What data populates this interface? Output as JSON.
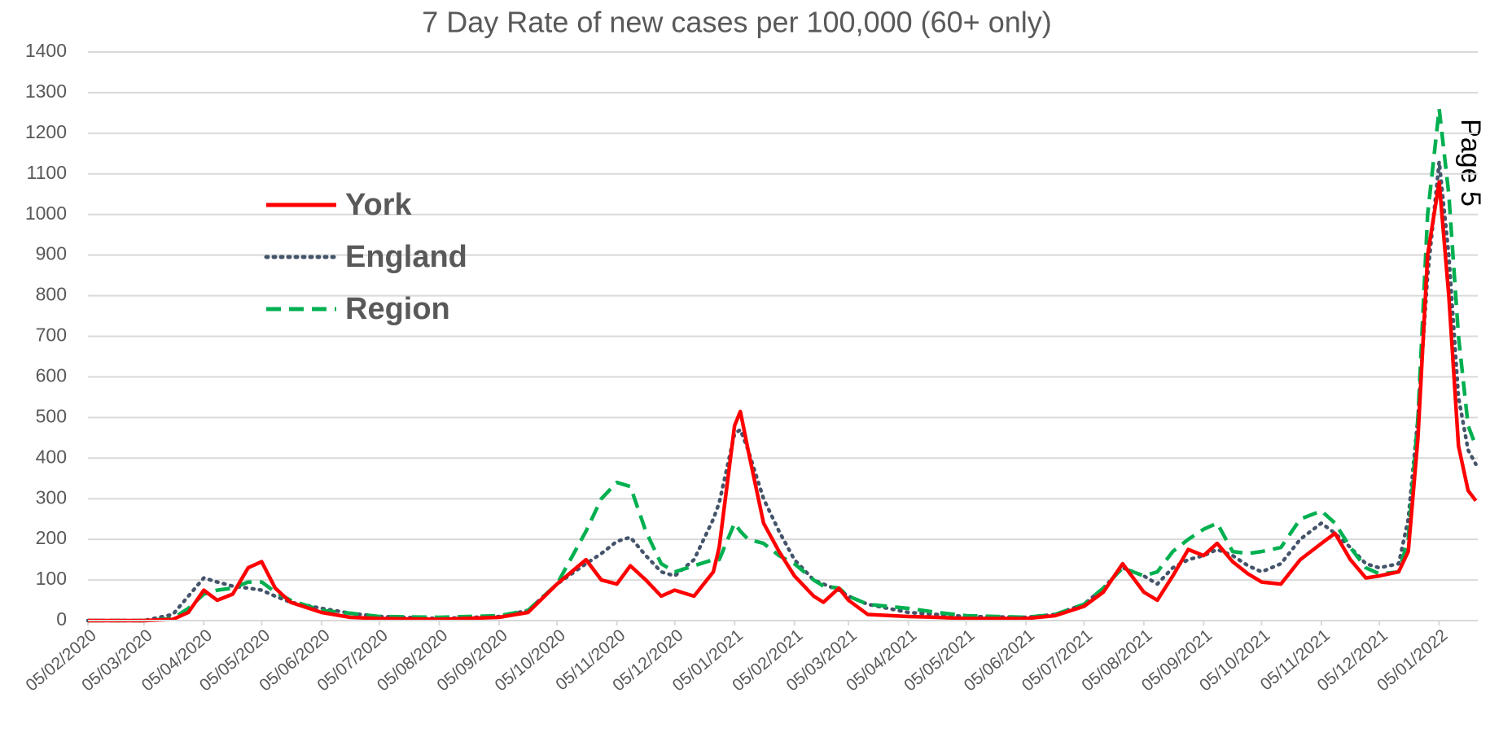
{
  "chart_data": {
    "type": "line",
    "title": "7 Day Rate of new cases per 100,000 (60+ only)",
    "annotation": "Page 5",
    "x": [
      "05/02/2020",
      "05/03/2020",
      "20/03/2020",
      "28/03/2020",
      "05/04/2020",
      "12/04/2020",
      "20/04/2020",
      "28/04/2020",
      "05/05/2020",
      "12/05/2020",
      "20/05/2020",
      "05/06/2020",
      "20/06/2020",
      "05/07/2020",
      "05/08/2020",
      "05/09/2020",
      "20/09/2020",
      "05/10/2020",
      "20/10/2020",
      "28/10/2020",
      "05/11/2020",
      "12/11/2020",
      "20/11/2020",
      "28/11/2020",
      "05/12/2020",
      "15/12/2020",
      "25/12/2020",
      "28/12/2020",
      "05/01/2021",
      "08/01/2021",
      "12/01/2021",
      "20/01/2021",
      "28/01/2021",
      "05/02/2021",
      "15/02/2021",
      "20/02/2021",
      "28/02/2021",
      "05/03/2021",
      "15/03/2021",
      "05/04/2021",
      "20/04/2021",
      "05/05/2021",
      "05/06/2021",
      "20/06/2021",
      "05/07/2021",
      "15/07/2021",
      "25/07/2021",
      "05/08/2021",
      "12/08/2021",
      "20/08/2021",
      "28/08/2021",
      "05/09/2021",
      "12/09/2021",
      "20/09/2021",
      "28/09/2021",
      "05/10/2021",
      "15/10/2021",
      "25/10/2021",
      "05/11/2021",
      "12/11/2021",
      "20/11/2021",
      "28/11/2021",
      "05/12/2021",
      "15/12/2021",
      "20/12/2021",
      "25/12/2021",
      "30/12/2021",
      "05/01/2022",
      "10/01/2022",
      "15/01/2022",
      "20/01/2022",
      "24/01/2022"
    ],
    "series": [
      {
        "name": "York",
        "color": "#ff0000",
        "style": "solid",
        "values": [
          0,
          0,
          3,
          20,
          75,
          50,
          65,
          130,
          145,
          80,
          45,
          20,
          8,
          5,
          3,
          8,
          20,
          90,
          150,
          100,
          90,
          135,
          100,
          60,
          75,
          60,
          120,
          180,
          480,
          515,
          420,
          240,
          170,
          110,
          60,
          45,
          80,
          50,
          15,
          10,
          8,
          5,
          5,
          12,
          35,
          70,
          140,
          70,
          50,
          110,
          175,
          160,
          190,
          145,
          115,
          95,
          90,
          150,
          190,
          215,
          150,
          105,
          110,
          120,
          170,
          450,
          900,
          1080,
          800,
          430,
          320,
          295
        ]
      },
      {
        "name": "England",
        "color": "#44546a",
        "style": "dotted",
        "values": [
          0,
          0,
          15,
          60,
          105,
          95,
          85,
          80,
          75,
          60,
          45,
          30,
          18,
          10,
          5,
          10,
          25,
          90,
          140,
          165,
          195,
          205,
          160,
          120,
          110,
          150,
          250,
          290,
          460,
          470,
          420,
          300,
          220,
          150,
          100,
          90,
          75,
          60,
          40,
          20,
          15,
          10,
          8,
          15,
          40,
          80,
          130,
          110,
          90,
          130,
          150,
          160,
          175,
          160,
          135,
          120,
          140,
          200,
          240,
          215,
          180,
          140,
          130,
          140,
          250,
          500,
          850,
          1130,
          900,
          550,
          420,
          385
        ]
      },
      {
        "name": "Region",
        "color": "#00b050",
        "style": "dashed",
        "values": [
          0,
          0,
          5,
          30,
          65,
          75,
          80,
          95,
          95,
          70,
          50,
          25,
          18,
          10,
          8,
          12,
          25,
          90,
          220,
          300,
          340,
          330,
          220,
          140,
          120,
          135,
          150,
          150,
          240,
          220,
          200,
          190,
          160,
          140,
          100,
          85,
          80,
          60,
          40,
          30,
          20,
          12,
          8,
          15,
          40,
          80,
          130,
          110,
          120,
          170,
          200,
          225,
          240,
          170,
          165,
          170,
          180,
          250,
          270,
          240,
          180,
          130,
          115,
          120,
          200,
          500,
          1000,
          1260,
          1050,
          700,
          480,
          430
        ]
      }
    ],
    "xlim": [
      "05/02/2020",
      "25/01/2022"
    ],
    "xticks": [
      "05/02/2020",
      "05/03/2020",
      "05/04/2020",
      "05/05/2020",
      "05/06/2020",
      "05/07/2020",
      "05/08/2020",
      "05/09/2020",
      "05/10/2020",
      "05/11/2020",
      "05/12/2020",
      "05/01/2021",
      "05/02/2021",
      "05/03/2021",
      "05/04/2021",
      "05/05/2021",
      "05/06/2021",
      "05/07/2021",
      "05/08/2021",
      "05/09/2021",
      "05/10/2021",
      "05/11/2021",
      "05/12/2021",
      "05/01/2022"
    ],
    "ylim": [
      0,
      1400
    ],
    "yticks": [
      0,
      100,
      200,
      300,
      400,
      500,
      600,
      700,
      800,
      900,
      1000,
      1100,
      1200,
      1300,
      1400
    ],
    "grid": true,
    "legend": "upper left"
  }
}
